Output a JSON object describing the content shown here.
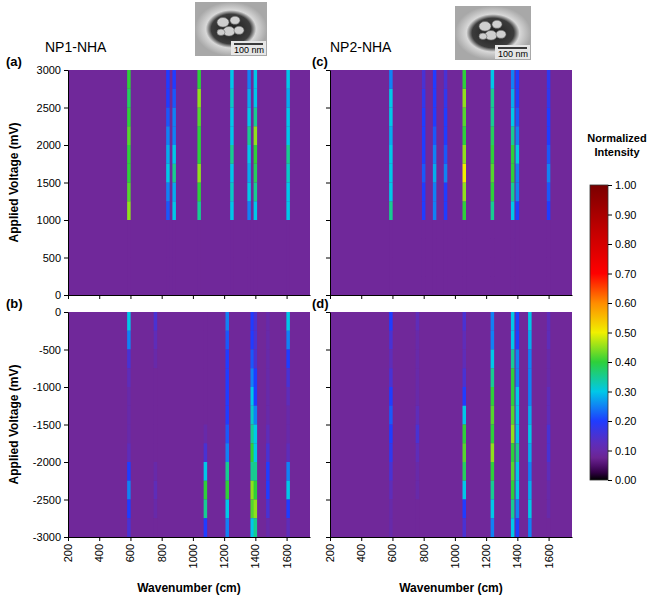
{
  "columns": [
    {
      "title": "NP1-NHA",
      "scale_bar": "100 nm"
    },
    {
      "title": "NP2-NHA",
      "scale_bar": "100 nm"
    }
  ],
  "colorbar": {
    "title": "Normalized Intensity",
    "range": [
      0,
      1
    ],
    "ticks": [
      {
        "value": 0,
        "label": "0.00"
      },
      {
        "value": 0.1,
        "label": "0.10"
      },
      {
        "value": 0.2,
        "label": "0.20"
      },
      {
        "value": 0.3,
        "label": "0.30"
      },
      {
        "value": 0.4,
        "label": "0.40"
      },
      {
        "value": 0.5,
        "label": "0.50"
      },
      {
        "value": 0.6,
        "label": "0.60"
      },
      {
        "value": 0.7,
        "label": "0.70"
      },
      {
        "value": 0.8,
        "label": "0.80"
      },
      {
        "value": 0.9,
        "label": "0.90"
      },
      {
        "value": 1,
        "label": "1.00"
      }
    ]
  },
  "chart_data": [
    {
      "type": "heatmap",
      "label": "(a)",
      "y_label": "Applied Voltage (mV)",
      "tick_labels": "y",
      "xlim": [
        200,
        1750
      ],
      "xticks": [
        200,
        400,
        600,
        800,
        1000,
        1200,
        1400,
        1600
      ],
      "ylim": [
        0,
        3000
      ],
      "yticks": [
        0,
        500,
        1000,
        1500,
        2000,
        2500,
        3000
      ],
      "background": 0.08,
      "x": [
        590,
        840,
        880,
        1040,
        1250,
        1360,
        1400,
        1610
      ],
      "y_edges": [
        0,
        250,
        500,
        750,
        1000,
        1250,
        1500,
        1750,
        2000,
        2250,
        2500,
        2750,
        3000
      ],
      "cells": [
        [
          0.08,
          0.08,
          0.08,
          0.08,
          0.45,
          0.42,
          0.4,
          0.4,
          0.42,
          0.4,
          0.38,
          0.4
        ],
        [
          0.08,
          0.08,
          0.08,
          0.08,
          0.22,
          0.25,
          0.3,
          0.28,
          0.25,
          0.22,
          0.2,
          0.2
        ],
        [
          0.08,
          0.08,
          0.08,
          0.08,
          0.3,
          0.28,
          0.35,
          0.3,
          0.25,
          0.25,
          0.22,
          0.2
        ],
        [
          0.08,
          0.08,
          0.08,
          0.08,
          0.35,
          0.4,
          0.45,
          0.4,
          0.4,
          0.42,
          0.45,
          0.4
        ],
        [
          0.08,
          0.08,
          0.08,
          0.08,
          0.3,
          0.32,
          0.3,
          0.35,
          0.3,
          0.3,
          0.32,
          0.3
        ],
        [
          0.08,
          0.08,
          0.08,
          0.08,
          0.25,
          0.3,
          0.28,
          0.3,
          0.35,
          0.3,
          0.28,
          0.25
        ],
        [
          0.08,
          0.08,
          0.08,
          0.08,
          0.3,
          0.35,
          0.38,
          0.4,
          0.45,
          0.35,
          0.3,
          0.3
        ],
        [
          0.08,
          0.08,
          0.08,
          0.08,
          0.3,
          0.3,
          0.32,
          0.35,
          0.3,
          0.3,
          0.28,
          0.3
        ]
      ]
    },
    {
      "type": "heatmap",
      "label": "(b)",
      "x_label": "Wavenumber (cm)",
      "y_label": "Applied Voltage (mV)",
      "tick_labels": true,
      "xlim": [
        200,
        1750
      ],
      "xticks": [
        200,
        400,
        600,
        800,
        1000,
        1200,
        1400,
        1600
      ],
      "ylim": [
        -3000,
        0
      ],
      "yticks": [
        0,
        -500,
        -1000,
        -1500,
        -2000,
        -2500,
        -3000
      ],
      "background": 0.08,
      "x": [
        590,
        760,
        1080,
        1220,
        1380,
        1400,
        1480,
        1610
      ],
      "y_edges": [
        0,
        -250,
        -500,
        -750,
        -1000,
        -1250,
        -1500,
        -1750,
        -2000,
        -2250,
        -2500,
        -2750,
        -3000
      ],
      "cells": [
        [
          0.3,
          0.25,
          0.15,
          0.12,
          0.1,
          0.1,
          0.1,
          0.12,
          0.2,
          0.25,
          0.2,
          0.15
        ],
        [
          0.15,
          0.12,
          0.1,
          0.08,
          0.08,
          0.08,
          0.08,
          0.08,
          0.1,
          0.12,
          0.1,
          0.08
        ],
        [
          0.08,
          0.08,
          0.08,
          0.08,
          0.08,
          0.08,
          0.1,
          0.15,
          0.3,
          0.4,
          0.35,
          0.2
        ],
        [
          0.25,
          0.22,
          0.2,
          0.2,
          0.2,
          0.2,
          0.22,
          0.25,
          0.35,
          0.4,
          0.3,
          0.25
        ],
        [
          0.2,
          0.2,
          0.22,
          0.25,
          0.3,
          0.32,
          0.35,
          0.4,
          0.35,
          0.45,
          0.42,
          0.3
        ],
        [
          0.15,
          0.15,
          0.15,
          0.2,
          0.2,
          0.25,
          0.3,
          0.3,
          0.35,
          0.4,
          0.45,
          0.35
        ],
        [
          0.1,
          0.1,
          0.1,
          0.1,
          0.1,
          0.1,
          0.12,
          0.15,
          0.2,
          0.2,
          0.15,
          0.1
        ],
        [
          0.3,
          0.25,
          0.2,
          0.15,
          0.12,
          0.1,
          0.1,
          0.12,
          0.25,
          0.3,
          0.2,
          0.12
        ]
      ]
    },
    {
      "type": "heatmap",
      "label": "(c)",
      "tick_labels": false,
      "xlim": [
        200,
        1750
      ],
      "xticks": [
        200,
        400,
        600,
        800,
        1000,
        1200,
        1400,
        1600
      ],
      "ylim": [
        0,
        3000
      ],
      "yticks": [
        0,
        500,
        1000,
        1500,
        2000,
        2500,
        3000
      ],
      "background": 0.08,
      "x": [
        590,
        800,
        870,
        940,
        1060,
        1240,
        1370,
        1400,
        1600
      ],
      "y_edges": [
        0,
        250,
        500,
        750,
        1000,
        1250,
        1500,
        1750,
        2000,
        2250,
        2500,
        2750,
        3000
      ],
      "cells": [
        [
          0.08,
          0.08,
          0.08,
          0.08,
          0.35,
          0.3,
          0.3,
          0.3,
          0.28,
          0.3,
          0.3,
          0.25
        ],
        [
          0.08,
          0.08,
          0.08,
          0.08,
          0.2,
          0.2,
          0.22,
          0.2,
          0.2,
          0.2,
          0.18,
          0.15
        ],
        [
          0.08,
          0.08,
          0.08,
          0.08,
          0.25,
          0.25,
          0.28,
          0.25,
          0.22,
          0.2,
          0.2,
          0.2
        ],
        [
          0.08,
          0.08,
          0.08,
          0.08,
          0.2,
          0.2,
          0.25,
          0.22,
          0.2,
          0.2,
          0.18,
          0.15
        ],
        [
          0.08,
          0.08,
          0.08,
          0.08,
          0.4,
          0.45,
          0.5,
          0.45,
          0.4,
          0.42,
          0.45,
          0.4
        ],
        [
          0.08,
          0.08,
          0.08,
          0.08,
          0.35,
          0.4,
          0.42,
          0.4,
          0.38,
          0.35,
          0.35,
          0.3
        ],
        [
          0.08,
          0.08,
          0.08,
          0.08,
          0.3,
          0.35,
          0.4,
          0.4,
          0.35,
          0.3,
          0.28,
          0.25
        ],
        [
          0.08,
          0.08,
          0.08,
          0.08,
          0.2,
          0.25,
          0.25,
          0.3,
          0.25,
          0.22,
          0.2,
          0.2
        ],
        [
          0.08,
          0.08,
          0.08,
          0.08,
          0.2,
          0.22,
          0.25,
          0.22,
          0.2,
          0.2,
          0.18,
          0.18
        ]
      ]
    },
    {
      "type": "heatmap",
      "label": "(d)",
      "x_label": "Wavenumber (cm)",
      "tick_labels": "x",
      "xlim": [
        200,
        1750
      ],
      "xticks": [
        200,
        400,
        600,
        800,
        1000,
        1200,
        1400,
        1600
      ],
      "ylim": [
        -3000,
        0
      ],
      "yticks": [
        0,
        -500,
        -1000,
        -1500,
        -2000,
        -2500,
        -3000
      ],
      "background": 0.08,
      "x": [
        590,
        760,
        1060,
        1240,
        1370,
        1400,
        1480,
        1600
      ],
      "y_edges": [
        0,
        -250,
        -500,
        -750,
        -1000,
        -1250,
        -1500,
        -1750,
        -2000,
        -2250,
        -2500,
        -2750,
        -3000
      ],
      "cells": [
        [
          0.2,
          0.15,
          0.12,
          0.15,
          0.2,
          0.22,
          0.2,
          0.18,
          0.15,
          0.12,
          0.1,
          0.1
        ],
        [
          0.12,
          0.1,
          0.1,
          0.1,
          0.1,
          0.12,
          0.15,
          0.12,
          0.1,
          0.1,
          0.08,
          0.08
        ],
        [
          0.15,
          0.12,
          0.12,
          0.15,
          0.2,
          0.3,
          0.4,
          0.42,
          0.38,
          0.3,
          0.2,
          0.15
        ],
        [
          0.25,
          0.25,
          0.3,
          0.35,
          0.4,
          0.42,
          0.4,
          0.45,
          0.4,
          0.35,
          0.3,
          0.25
        ],
        [
          0.3,
          0.3,
          0.35,
          0.4,
          0.4,
          0.42,
          0.45,
          0.4,
          0.42,
          0.4,
          0.35,
          0.3
        ],
        [
          0.2,
          0.2,
          0.25,
          0.25,
          0.3,
          0.3,
          0.3,
          0.35,
          0.3,
          0.3,
          0.25,
          0.2
        ],
        [
          0.3,
          0.28,
          0.25,
          0.25,
          0.25,
          0.28,
          0.3,
          0.28,
          0.25,
          0.28,
          0.3,
          0.25
        ],
        [
          0.12,
          0.12,
          0.1,
          0.1,
          0.12,
          0.12,
          0.15,
          0.15,
          0.12,
          0.1,
          0.1,
          0.08
        ]
      ]
    }
  ]
}
